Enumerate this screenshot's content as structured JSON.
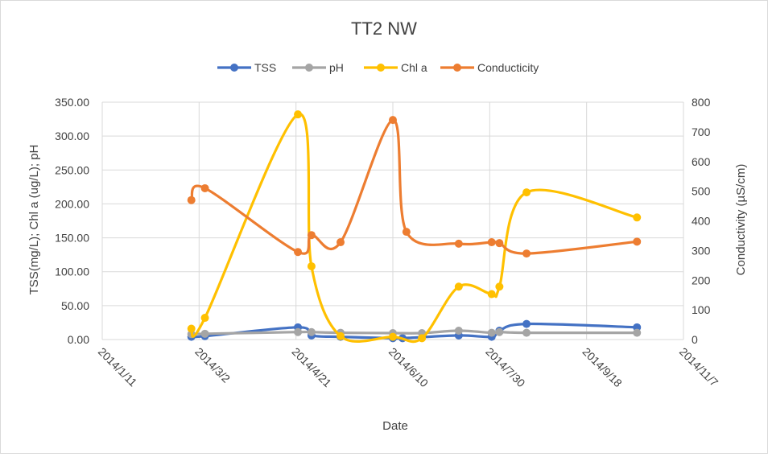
{
  "chart_data": {
    "type": "line",
    "title": "TT2 NW",
    "xlabel": "Date",
    "ylabel_left": "TSS(mg/L); Chl a (ug/L); pH",
    "ylabel_right": "Conductivity  (µS/cm)",
    "x_ticks": [
      "2014/1/11",
      "2014/3/2",
      "2014/4/21",
      "2014/6/10",
      "2014/7/30",
      "2014/9/18",
      "2014/11/7"
    ],
    "xlim": [
      "2014/1/11",
      "2014/11/7"
    ],
    "ylim_left": [
      0,
      350
    ],
    "ylim_right": [
      0,
      800
    ],
    "y_ticks_left": [
      "0.00",
      "50.00",
      "100.00",
      "150.00",
      "200.00",
      "250.00",
      "300.00",
      "350.00"
    ],
    "y_ticks_right": [
      "0",
      "100",
      "200",
      "300",
      "400",
      "500",
      "600",
      "700",
      "800"
    ],
    "grid": true,
    "smooth": true,
    "legend_position": "top",
    "series": [
      {
        "name": "TSS",
        "axis": "left",
        "color": "#4472C4",
        "x": [
          "2014/2/26",
          "2014/3/5",
          "2014/4/22",
          "2014/4/29",
          "2014/5/14",
          "2014/6/10",
          "2014/6/15",
          "2014/7/14",
          "2014/7/31",
          "2014/8/4",
          "2014/8/18",
          "2014/10/14"
        ],
        "y": [
          4,
          5,
          18,
          6,
          4,
          2,
          2,
          6,
          4,
          13,
          23,
          18
        ]
      },
      {
        "name": "pH",
        "axis": "left",
        "color": "#A5A5A5",
        "x": [
          "2014/2/26",
          "2014/3/5",
          "2014/4/22",
          "2014/4/29",
          "2014/5/14",
          "2014/6/10",
          "2014/6/25",
          "2014/7/14",
          "2014/7/31",
          "2014/8/4",
          "2014/8/18",
          "2014/10/14"
        ],
        "y": [
          8,
          8.5,
          11,
          11,
          10,
          9.5,
          9.5,
          13,
          10,
          11,
          10,
          10
        ]
      },
      {
        "name": "Chl a",
        "axis": "left",
        "color": "#FFC000",
        "x": [
          "2014/2/26",
          "2014/3/5",
          "2014/4/22",
          "2014/4/29",
          "2014/5/14",
          "2014/6/10",
          "2014/6/25",
          "2014/7/14",
          "2014/7/31",
          "2014/8/4",
          "2014/8/18",
          "2014/10/14"
        ],
        "y": [
          16,
          32,
          332,
          108,
          5,
          4,
          2,
          78,
          67,
          78,
          217,
          180
        ]
      },
      {
        "name": "Conducticity",
        "axis": "right",
        "color": "#ED7D31",
        "x": [
          "2014/2/26",
          "2014/3/5",
          "2014/4/22",
          "2014/4/29",
          "2014/5/14",
          "2014/6/10",
          "2014/6/17",
          "2014/7/14",
          "2014/7/31",
          "2014/8/4",
          "2014/8/18",
          "2014/10/14"
        ],
        "y": [
          470,
          510,
          295,
          352,
          328,
          740,
          363,
          323,
          328,
          325,
          290,
          330
        ]
      }
    ]
  }
}
